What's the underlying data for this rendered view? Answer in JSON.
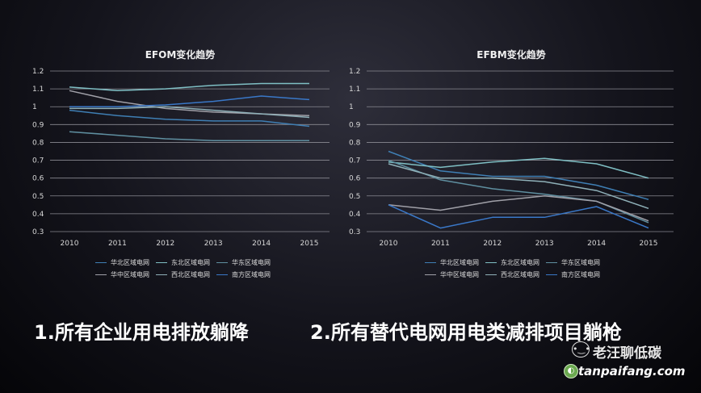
{
  "chart_data": [
    {
      "type": "line",
      "title": "EFOM变化趋势",
      "x": [
        "2010",
        "2011",
        "2012",
        "2013",
        "2014",
        "2015"
      ],
      "ylim": [
        0.3,
        1.2
      ],
      "yticks": [
        "1.2",
        "1.1",
        "1",
        "0.9",
        "0.8",
        "0.7",
        "0.6",
        "0.5",
        "0.4",
        "0.3"
      ],
      "grid": true,
      "legend_position": "bottom",
      "series": [
        {
          "name": "华北区域电网",
          "values": [
            0.98,
            0.95,
            0.93,
            0.92,
            0.92,
            0.89
          ]
        },
        {
          "name": "东北区域电网",
          "values": [
            1.11,
            1.09,
            1.1,
            1.12,
            1.13,
            1.13
          ]
        },
        {
          "name": "华东区域电网",
          "values": [
            0.86,
            0.84,
            0.82,
            0.81,
            0.81,
            0.81
          ]
        },
        {
          "name": "华中区域电网",
          "values": [
            1.09,
            1.03,
            0.99,
            0.97,
            0.96,
            0.95
          ]
        },
        {
          "name": "西北区域电网",
          "values": [
            0.99,
            0.99,
            1.0,
            0.98,
            0.96,
            0.94
          ]
        },
        {
          "name": "南方区域电网",
          "values": [
            1.0,
            1.0,
            1.01,
            1.03,
            1.06,
            1.04
          ]
        }
      ]
    },
    {
      "type": "line",
      "title": "EFBM变化趋势",
      "x": [
        "2010",
        "2011",
        "2012",
        "2013",
        "2014",
        "2015"
      ],
      "ylim": [
        0.3,
        1.2
      ],
      "yticks": [
        "1.2",
        "1.1",
        "1",
        "0.9",
        "0.8",
        "0.7",
        "0.6",
        "0.5",
        "0.4",
        "0.3"
      ],
      "grid": true,
      "legend_position": "bottom",
      "series": [
        {
          "name": "华北区域电网",
          "values": [
            0.75,
            0.64,
            0.61,
            0.61,
            0.56,
            0.48
          ]
        },
        {
          "name": "东北区域电网",
          "values": [
            0.69,
            0.66,
            0.69,
            0.71,
            0.68,
            0.6
          ]
        },
        {
          "name": "华东区域电网",
          "values": [
            0.7,
            0.59,
            0.54,
            0.51,
            0.47,
            0.35
          ]
        },
        {
          "name": "华中区域电网",
          "values": [
            0.45,
            0.42,
            0.47,
            0.5,
            0.47,
            0.36
          ]
        },
        {
          "name": "西北区域电网",
          "values": [
            0.68,
            0.6,
            0.6,
            0.58,
            0.53,
            0.43
          ]
        },
        {
          "name": "南方区域电网",
          "values": [
            0.45,
            0.32,
            0.38,
            0.38,
            0.44,
            0.32
          ]
        }
      ]
    }
  ],
  "series_colors": [
    "#3f7fb4",
    "#7fbfc4",
    "#5f8fa0",
    "#a0a0a8",
    "#8fb0b8",
    "#3a78c8"
  ],
  "captions": {
    "left": "1.所有企业用电排放躺降",
    "right": "2.所有替代电网用电类减排项目躺枪"
  },
  "watermark": {
    "name": "老汪聊低碳",
    "url": "tanpaifang.com"
  }
}
